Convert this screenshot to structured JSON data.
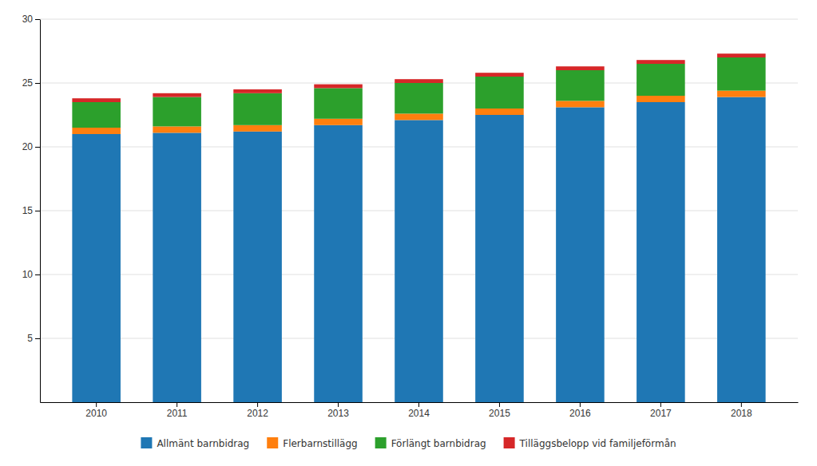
{
  "chart_data": {
    "type": "bar",
    "stacked": true,
    "categories": [
      "2010",
      "2011",
      "2012",
      "2013",
      "2014",
      "2015",
      "2016",
      "2017",
      "2018"
    ],
    "series": [
      {
        "name": "Allmänt barnbidrag",
        "values": [
          21.0,
          21.1,
          21.2,
          21.7,
          22.1,
          22.5,
          23.1,
          23.5,
          23.9
        ]
      },
      {
        "name": "Flerbarnstillägg",
        "values": [
          0.5,
          0.5,
          0.5,
          0.5,
          0.5,
          0.5,
          0.5,
          0.5,
          0.5
        ]
      },
      {
        "name": "Förlängt barnbidrag",
        "values": [
          2.0,
          2.3,
          2.5,
          2.4,
          2.4,
          2.5,
          2.4,
          2.5,
          2.6
        ]
      },
      {
        "name": "Tilläggsbelopp vid familjeförmån",
        "values": [
          0.3,
          0.3,
          0.3,
          0.3,
          0.3,
          0.3,
          0.3,
          0.3,
          0.3
        ]
      }
    ],
    "ylim": [
      0,
      30
    ],
    "yticks": [
      5,
      10,
      15,
      20,
      25,
      30
    ],
    "grid": true,
    "legend": "bottom"
  }
}
